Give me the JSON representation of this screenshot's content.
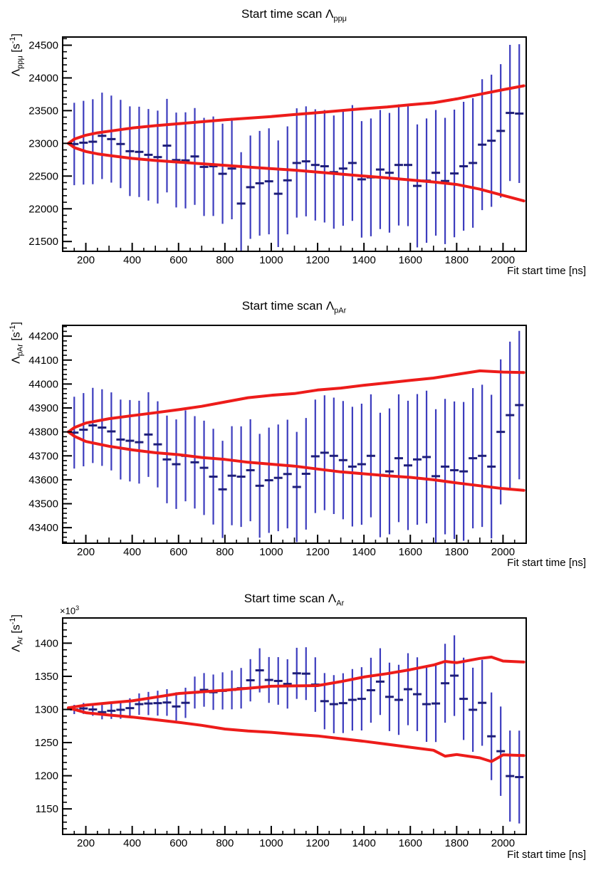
{
  "page": {
    "background": "#ffffff"
  },
  "chart_data": [
    {
      "type": "scatter",
      "title": {
        "text": "Start time scan ",
        "symbol": "Λ",
        "sub": "ppμ"
      },
      "xlabel": "Fit start time [ns]",
      "ylabel": {
        "symbol": "Λ",
        "sub": "ppμ",
        "unit_open": " [s",
        "unit_exp": "-1",
        "unit_close": "]"
      },
      "xlim": [
        100,
        2100
      ],
      "ylim": [
        21350,
        24625
      ],
      "x_ticks": [
        200,
        400,
        600,
        800,
        1000,
        1200,
        1400,
        1600,
        1800,
        2000
      ],
      "y_ticks": [
        21500,
        22000,
        22500,
        23000,
        23500,
        24000,
        24500
      ],
      "x_minor_step": 50,
      "y_minor_step": 100,
      "colors": {
        "points": "#3c3cbe",
        "marker": "#1e1e78",
        "band": "#ed1c1a"
      },
      "series": [
        {
          "name": "fitted-rate-vs-start-time",
          "x": [
            150,
            190,
            230,
            270,
            310,
            350,
            390,
            430,
            470,
            510,
            550,
            590,
            630,
            670,
            710,
            750,
            790,
            830,
            870,
            910,
            950,
            990,
            1030,
            1070,
            1110,
            1150,
            1190,
            1230,
            1270,
            1310,
            1350,
            1390,
            1430,
            1470,
            1510,
            1550,
            1590,
            1630,
            1670,
            1710,
            1750,
            1790,
            1830,
            1870,
            1910,
            1950,
            1990,
            2030,
            2070
          ],
          "y": [
            22990,
            23010,
            23025,
            23115,
            23065,
            22990,
            22880,
            22870,
            22825,
            22790,
            22965,
            22745,
            22740,
            22800,
            22640,
            22650,
            22535,
            22615,
            22080,
            22330,
            22390,
            22420,
            22230,
            22435,
            22700,
            22725,
            22670,
            22650,
            22560,
            22615,
            22700,
            22450,
            22480,
            22600,
            22550,
            22670,
            22670,
            22350,
            22430,
            22550,
            22425,
            22540,
            22650,
            22700,
            22980,
            23040,
            23190,
            23465,
            23455
          ],
          "yerr": [
            630,
            640,
            650,
            660,
            665,
            675,
            685,
            690,
            700,
            710,
            715,
            725,
            735,
            740,
            750,
            760,
            765,
            775,
            785,
            790,
            800,
            810,
            815,
            825,
            835,
            840,
            850,
            860,
            865,
            875,
            885,
            890,
            900,
            910,
            915,
            925,
            935,
            940,
            950,
            960,
            965,
            975,
            985,
            990,
            1000,
            1010,
            1020,
            1040,
            1060
          ]
        }
      ],
      "band": {
        "name": "one-sigma-band",
        "x": [
          125,
          150,
          200,
          250,
          300,
          400,
          500,
          600,
          700,
          800,
          900,
          1000,
          1100,
          1200,
          1300,
          1400,
          1500,
          1600,
          1700,
          1800,
          1900,
          2000,
          2090
        ],
        "upper": [
          23000,
          23065,
          23125,
          23160,
          23185,
          23235,
          23270,
          23300,
          23330,
          23360,
          23385,
          23410,
          23440,
          23470,
          23500,
          23530,
          23555,
          23590,
          23620,
          23680,
          23750,
          23820,
          23880
        ],
        "lower": [
          23000,
          22935,
          22875,
          22840,
          22815,
          22770,
          22738,
          22713,
          22688,
          22663,
          22638,
          22613,
          22590,
          22560,
          22530,
          22500,
          22472,
          22440,
          22410,
          22372,
          22300,
          22205,
          22120
        ]
      }
    },
    {
      "type": "scatter",
      "title": {
        "text": "Start time scan ",
        "symbol": "Λ",
        "sub": "pAr"
      },
      "xlabel": "Fit start time [ns]",
      "ylabel": {
        "symbol": "Λ",
        "sub": "pAr",
        "unit_open": " [s",
        "unit_exp": "-1",
        "unit_close": "]"
      },
      "xlim": [
        100,
        2100
      ],
      "ylim": [
        43335,
        44245
      ],
      "x_ticks": [
        200,
        400,
        600,
        800,
        1000,
        1200,
        1400,
        1600,
        1800,
        2000
      ],
      "y_ticks": [
        43400,
        43500,
        43600,
        43700,
        43800,
        43900,
        44000,
        44100,
        44200
      ],
      "x_minor_step": 50,
      "y_minor_step": 20,
      "colors": {
        "points": "#3c3cbe",
        "marker": "#1e1e78",
        "band": "#ed1c1a"
      },
      "series": [
        {
          "name": "fitted-rate-vs-start-time",
          "x": [
            150,
            190,
            230,
            270,
            310,
            350,
            390,
            430,
            470,
            510,
            550,
            590,
            630,
            670,
            710,
            750,
            790,
            830,
            870,
            910,
            950,
            990,
            1030,
            1070,
            1110,
            1150,
            1190,
            1230,
            1270,
            1310,
            1350,
            1390,
            1430,
            1470,
            1510,
            1550,
            1590,
            1630,
            1670,
            1710,
            1750,
            1790,
            1830,
            1870,
            1910,
            1950,
            1990,
            2030,
            2070
          ],
          "y": [
            43797,
            43809,
            43827,
            43818,
            43802,
            43768,
            43763,
            43757,
            43789,
            43748,
            43685,
            43665,
            43700,
            43673,
            43650,
            43613,
            43560,
            43617,
            43613,
            43640,
            43575,
            43598,
            43608,
            43624,
            43570,
            43625,
            43698,
            43713,
            43700,
            43682,
            43655,
            43665,
            43700,
            43620,
            43635,
            43690,
            43660,
            43685,
            43695,
            43615,
            43655,
            43640,
            43635,
            43690,
            43700,
            43655,
            43800,
            43870,
            43912
          ],
          "yerr": [
            150,
            153,
            157,
            160,
            163,
            167,
            170,
            173,
            177,
            180,
            183,
            187,
            190,
            193,
            197,
            200,
            203,
            207,
            210,
            213,
            217,
            220,
            223,
            227,
            230,
            233,
            237,
            240,
            243,
            247,
            250,
            253,
            257,
            260,
            263,
            267,
            270,
            273,
            277,
            280,
            283,
            287,
            290,
            293,
            297,
            300,
            303,
            307,
            310
          ]
        }
      ],
      "band": {
        "name": "one-sigma-band",
        "x": [
          125,
          150,
          200,
          300,
          400,
          500,
          600,
          700,
          800,
          900,
          1000,
          1100,
          1200,
          1300,
          1400,
          1500,
          1600,
          1700,
          1800,
          1900,
          2000,
          2090
        ],
        "upper": [
          43800,
          43818,
          43837,
          43855,
          43868,
          43880,
          43893,
          43907,
          43925,
          43943,
          43953,
          43960,
          43975,
          43983,
          43995,
          44005,
          44015,
          44025,
          44040,
          44055,
          44050,
          44048
        ],
        "lower": [
          43800,
          43782,
          43760,
          43740,
          43725,
          43713,
          43705,
          43693,
          43685,
          43673,
          43665,
          43657,
          43645,
          43633,
          43625,
          43617,
          43610,
          43600,
          43587,
          43575,
          43563,
          43556
        ]
      }
    },
    {
      "type": "scatter",
      "title": {
        "text": "Start time scan ",
        "symbol": "Λ",
        "sub": "Ar"
      },
      "xlabel": "Fit start time [ns]",
      "ylabel": {
        "symbol": "Λ",
        "sub": "Ar",
        "unit_open": " [s",
        "unit_exp": "-1",
        "unit_close": "]"
      },
      "exponent": {
        "base": "×10",
        "exp": "3"
      },
      "xlim": [
        100,
        2100
      ],
      "ylim": [
        1111.5,
        1438
      ],
      "x_ticks": [
        200,
        400,
        600,
        800,
        1000,
        1200,
        1400,
        1600,
        1800,
        2000
      ],
      "y_ticks": [
        1150,
        1200,
        1250,
        1300,
        1350,
        1400
      ],
      "x_minor_step": 50,
      "y_minor_step": 10,
      "colors": {
        "points": "#3c3cbe",
        "marker": "#1e1e78",
        "band": "#ed1c1a"
      },
      "series": [
        {
          "name": "fitted-rate-vs-start-time",
          "x": [
            150,
            190,
            230,
            270,
            310,
            350,
            390,
            430,
            470,
            510,
            550,
            590,
            630,
            670,
            710,
            750,
            790,
            830,
            870,
            910,
            950,
            990,
            1030,
            1070,
            1110,
            1150,
            1190,
            1230,
            1270,
            1310,
            1350,
            1390,
            1430,
            1470,
            1510,
            1550,
            1590,
            1630,
            1670,
            1710,
            1750,
            1790,
            1830,
            1870,
            1910,
            1950,
            1990,
            2030,
            2070
          ],
          "y": [
            1300,
            1301.5,
            1300,
            1296,
            1298,
            1299.5,
            1302,
            1308,
            1309,
            1309.5,
            1310.5,
            1304.5,
            1310,
            1325.5,
            1329.5,
            1326,
            1328,
            1329.5,
            1332,
            1344,
            1359,
            1344.5,
            1343,
            1338.5,
            1354.5,
            1354,
            1337.5,
            1312.5,
            1308,
            1309.5,
            1314.5,
            1316,
            1329,
            1342,
            1319,
            1314.5,
            1330.5,
            1323,
            1308,
            1309,
            1339.5,
            1351,
            1316,
            1299.5,
            1310,
            1259.5,
            1237,
            1199.5,
            1198
          ],
          "yerr": [
            7,
            8.3,
            9.6,
            10.9,
            12.3,
            13.6,
            14.9,
            16.2,
            17.5,
            18.8,
            20.1,
            21.4,
            22.8,
            24.1,
            25.4,
            26.7,
            28,
            29.3,
            30.6,
            31.9,
            33.3,
            34.6,
            35.9,
            37.2,
            38.5,
            39.8,
            41.1,
            42.4,
            43.8,
            45.1,
            46.4,
            47.7,
            49,
            50.3,
            51.6,
            52.9,
            54.3,
            55.6,
            56.9,
            58.2,
            59.5,
            60.8,
            62.1,
            63.4,
            64.8,
            66.1,
            67.4,
            68.7,
            70
          ]
        }
      ],
      "band": {
        "name": "one-sigma-band",
        "x": [
          125,
          200,
          300,
          400,
          500,
          600,
          700,
          800,
          900,
          1000,
          1100,
          1200,
          1300,
          1400,
          1500,
          1600,
          1700,
          1750,
          1800,
          1900,
          1950,
          2000,
          2090
        ],
        "upper": [
          1302.5,
          1306.5,
          1310,
          1313,
          1318.5,
          1324,
          1326.5,
          1329,
          1332,
          1335,
          1335.5,
          1336,
          1342,
          1349,
          1354,
          1360,
          1367,
          1372.5,
          1370.5,
          1377,
          1379,
          1373,
          1371.5
        ],
        "lower": [
          1302.5,
          1295,
          1291.5,
          1288.5,
          1284.5,
          1280.5,
          1276,
          1270.5,
          1267.5,
          1265.5,
          1262.5,
          1260,
          1256,
          1252,
          1247.5,
          1243,
          1238.5,
          1229.5,
          1232,
          1227,
          1221.5,
          1231.5,
          1230.5
        ]
      }
    }
  ]
}
